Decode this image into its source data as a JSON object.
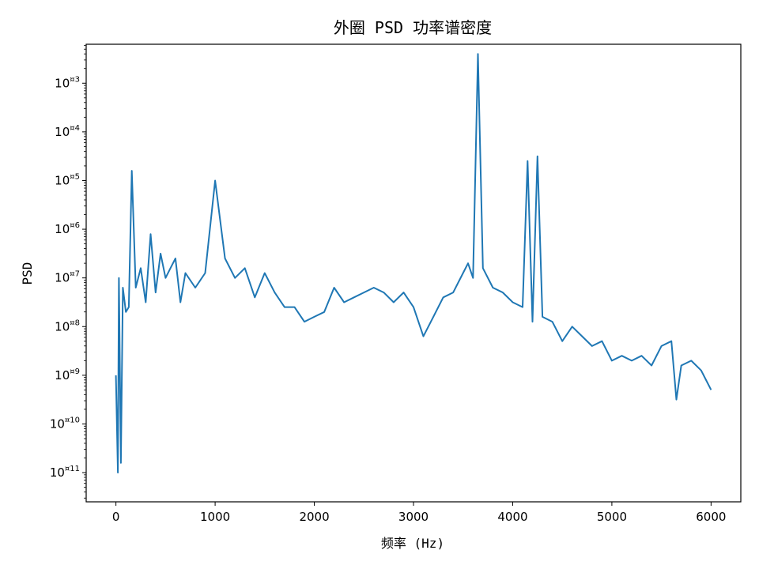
{
  "chart_data": {
    "type": "line",
    "title": "外圈 PSD 功率谱密度",
    "xlabel": "频率 (Hz)",
    "ylabel": "PSD",
    "yscale": "log",
    "xlim": [
      -300,
      6300
    ],
    "ylim_exp": [
      -11.6,
      -2.2
    ],
    "xticks": [
      0,
      1000,
      2000,
      3000,
      4000,
      5000,
      6000
    ],
    "xtick_labels": [
      "0",
      "1000",
      "2000",
      "3000",
      "4000",
      "5000",
      "6000"
    ],
    "ytick_exps": [
      -3,
      -4,
      -5,
      -6,
      -7,
      -8,
      -9,
      -10,
      -11
    ],
    "ytick_label_base": "10",
    "ytick_label_exps": [
      "¤3",
      "¤4",
      "¤5",
      "¤6",
      "¤7",
      "¤8",
      "¤9",
      "¤10",
      "¤11"
    ],
    "series_color": "#1f77b4",
    "series": [
      {
        "x": [
          0,
          20,
          30,
          50,
          70,
          100,
          130,
          160,
          200,
          250,
          300,
          350,
          400,
          450,
          500,
          550,
          600,
          650,
          700,
          800,
          900,
          1000,
          1100,
          1200,
          1300,
          1400,
          1500,
          1600,
          1700,
          1800,
          1900,
          2000,
          2100,
          2200,
          2300,
          2400,
          2500,
          2600,
          2700,
          2800,
          2900,
          3000,
          3100,
          3200,
          3300,
          3400,
          3500,
          3550,
          3600,
          3650,
          3700,
          3800,
          3900,
          4000,
          4100,
          4150,
          4200,
          4250,
          4300,
          4400,
          4500,
          4600,
          4700,
          4800,
          4900,
          5000,
          5100,
          5200,
          5300,
          5400,
          5500,
          5600,
          5650,
          5700,
          5800,
          5900,
          6000
        ],
        "log10_psd": [
          -9.0,
          -11.0,
          -7.0,
          -10.8,
          -7.2,
          -7.7,
          -7.6,
          -4.8,
          -7.2,
          -6.8,
          -7.5,
          -6.1,
          -7.3,
          -6.5,
          -7.0,
          -6.8,
          -6.6,
          -7.5,
          -6.9,
          -7.2,
          -6.9,
          -5.0,
          -6.6,
          -7.0,
          -6.8,
          -7.4,
          -6.9,
          -7.3,
          -7.6,
          -7.6,
          -7.9,
          -7.8,
          -7.7,
          -7.2,
          -7.5,
          -7.4,
          -7.3,
          -7.2,
          -7.3,
          -7.5,
          -7.3,
          -7.6,
          -8.2,
          -7.8,
          -7.4,
          -7.3,
          -6.9,
          -6.7,
          -7.0,
          -2.4,
          -6.8,
          -7.2,
          -7.3,
          -7.5,
          -7.6,
          -4.6,
          -7.9,
          -4.5,
          -7.8,
          -7.9,
          -8.3,
          -8.0,
          -8.2,
          -8.4,
          -8.3,
          -8.7,
          -8.6,
          -8.7,
          -8.6,
          -8.8,
          -8.4,
          -8.3,
          -9.5,
          -8.8,
          -8.7,
          -8.9,
          -9.3
        ]
      }
    ]
  }
}
